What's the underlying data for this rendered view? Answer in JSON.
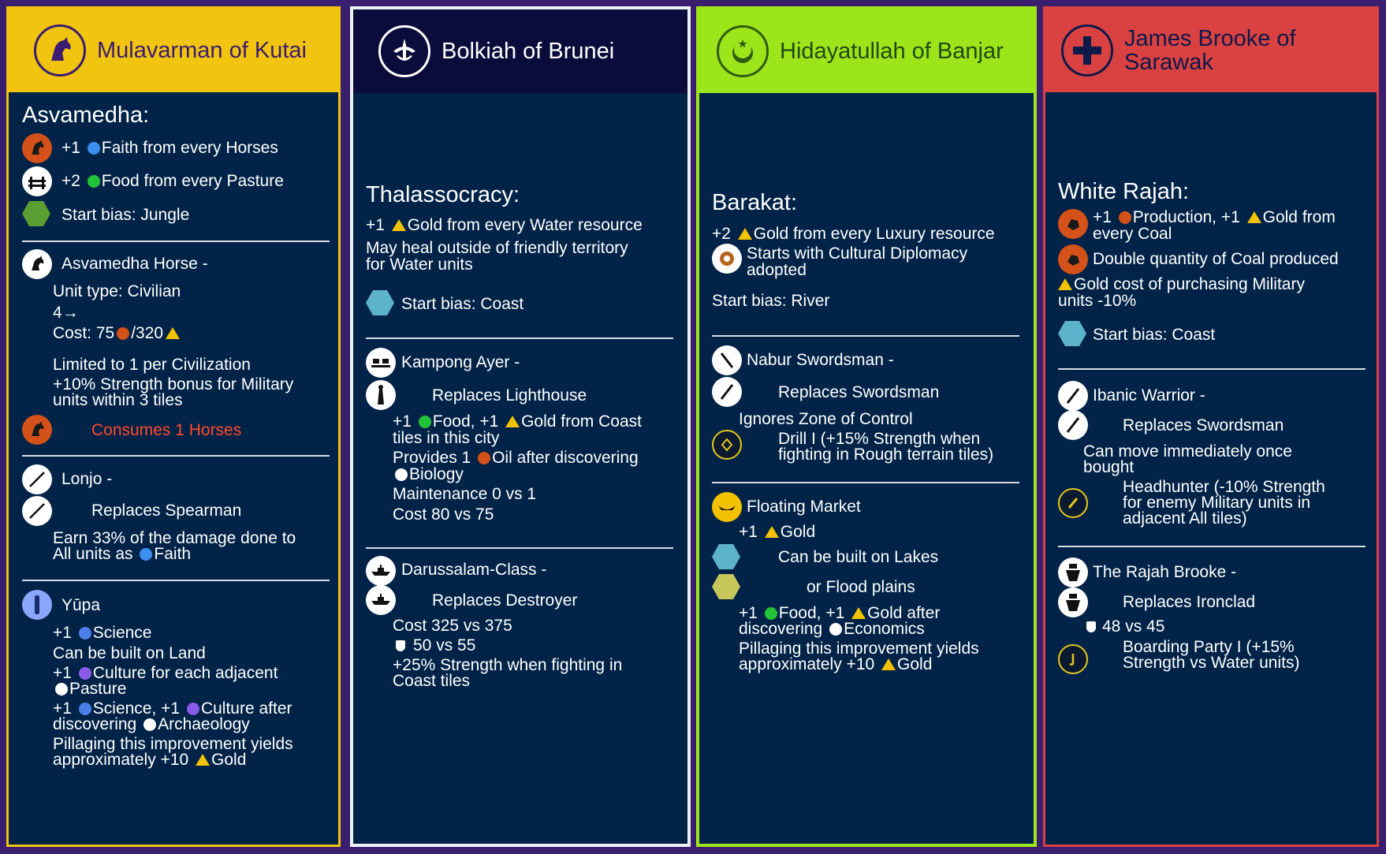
{
  "colors": {
    "background": "#3a1f6e",
    "card_body": "#012347",
    "kutai": "#f1c40f",
    "brunei": "#0a0d3c",
    "banjar": "#9ce51a",
    "sarawak": "#da4141",
    "gold": "#f2c200",
    "faith": "#3a8ff0",
    "food": "#22c23a",
    "science": "#4a7fe8",
    "culture": "#8a5ae8",
    "production": "#d4521a",
    "warning": "#ff4a2a"
  },
  "cards": {
    "kutai": {
      "name": "Mulavarman of Kutai",
      "emblem": "horse-head-icon",
      "ability_title": "Asvamedha:",
      "ability_lines": [
        "+1 ",
        "Faith from every Horses",
        "+2 ",
        "Food from every Pasture",
        "Start bias: Jungle"
      ],
      "unit1": {
        "name": "Asvamedha Horse -",
        "type": "Unit type: Civilian",
        "move": "4",
        "cost_label": "Cost: 75",
        "cost_gold": "/320",
        "limit": "Limited to 1 per Civilization",
        "bonus1": "+10% Strength bonus for Military",
        "bonus2": "units within 3 tiles",
        "consumes": "Consumes 1 Horses"
      },
      "unit2": {
        "name": "Lonjo -",
        "replaces": "Replaces Spearman",
        "effect1": "Earn 33% of the damage done to",
        "effect2a": "All units as ",
        "effect2b": "Faith"
      },
      "improvement": {
        "name": "Yūpa",
        "l1a": "+1 ",
        "l1b": "Science",
        "l2": "Can be built on Land",
        "l3a": "+1 ",
        "l3b": "Culture for each adjacent",
        "l4": "Pasture",
        "l5a": "+1 ",
        "l5b": "Science, +1 ",
        "l5c": "Culture after",
        "l6a": "discovering ",
        "l6b": "Archaeology",
        "l7": "Pillaging this improvement yields",
        "l8a": "approximately +10 ",
        "l8b": "Gold"
      }
    },
    "brunei": {
      "name": "Bolkiah of Brunei",
      "emblem": "brunei-crest-icon",
      "ability_title": "Thalassocracy:",
      "a1a": "+1 ",
      "a1b": "Gold from every Water resource",
      "a2": "May heal outside of friendly territory",
      "a3": "for Water units",
      "bias": "Start bias: Coast",
      "building": {
        "name": "Kampong Ayer -",
        "replaces": "Replaces Lighthouse",
        "l1a": "+1 ",
        "l1b": "Food, +1 ",
        "l1c": "Gold from Coast",
        "l2": "tiles in this city",
        "l3a": "Provides 1 ",
        "l3b": "Oil after discovering",
        "l4": "Biology",
        "l5": "Maintenance 0 vs 1",
        "l6": "Cost 80 vs 75"
      },
      "unit": {
        "name": "Darussalam-Class -",
        "replaces": "Replaces Destroyer",
        "l1": "Cost 325 vs 375",
        "l2": "50 vs 55",
        "l3": "+25% Strength when fighting in",
        "l4": "Coast tiles"
      }
    },
    "banjar": {
      "name": "Hidayatullah of Banjar",
      "emblem": "crescent-star-icon",
      "ability_title": "Barakat:",
      "a1a": "+2 ",
      "a1b": "Gold from every Luxury resource",
      "a2": "Starts with Cultural Diplomacy",
      "a3": "adopted",
      "bias": "Start bias: River",
      "unit": {
        "name": "Nabur Swordsman -",
        "replaces": "Replaces Swordsman",
        "l1": "Ignores Zone of Control",
        "l2": "Drill I (+15% Strength when",
        "l3": "fighting in Rough terrain tiles)"
      },
      "improvement": {
        "name": "Floating Market",
        "l1a": "+1 ",
        "l1b": "Gold",
        "l2": "Can be built on Lakes",
        "l3": "or Flood plains",
        "l4a": "+1 ",
        "l4b": "Food, +1 ",
        "l4c": "Gold after",
        "l5a": "discovering ",
        "l5b": "Economics",
        "l6": "Pillaging this improvement yields",
        "l7a": "approximately +10 ",
        "l7b": "Gold"
      }
    },
    "sarawak": {
      "name1": "James Brooke of",
      "name2": "Sarawak",
      "emblem": "red-cross-icon",
      "ability_title": "White Rajah:",
      "a1a": "+1 ",
      "a1b": "Production, +1 ",
      "a1c": "Gold from",
      "a2": "every Coal",
      "a3": "Double quantity of Coal produced",
      "a4": "Gold cost of purchasing Military",
      "a5": "units -10%",
      "bias": "Start bias: Coast",
      "unit1": {
        "name": "Ibanic Warrior -",
        "replaces": "Replaces Swordsman",
        "l1": "Can move immediately once",
        "l2": "bought",
        "l3": "Headhunter (-10% Strength",
        "l4": "for enemy Military units in",
        "l5": "adjacent All tiles)"
      },
      "unit2": {
        "name": "The Rajah Brooke -",
        "replaces": "Replaces Ironclad",
        "l1": "48 vs 45",
        "l2": "Boarding Party I (+15%",
        "l3": "Strength vs Water units)"
      }
    }
  }
}
